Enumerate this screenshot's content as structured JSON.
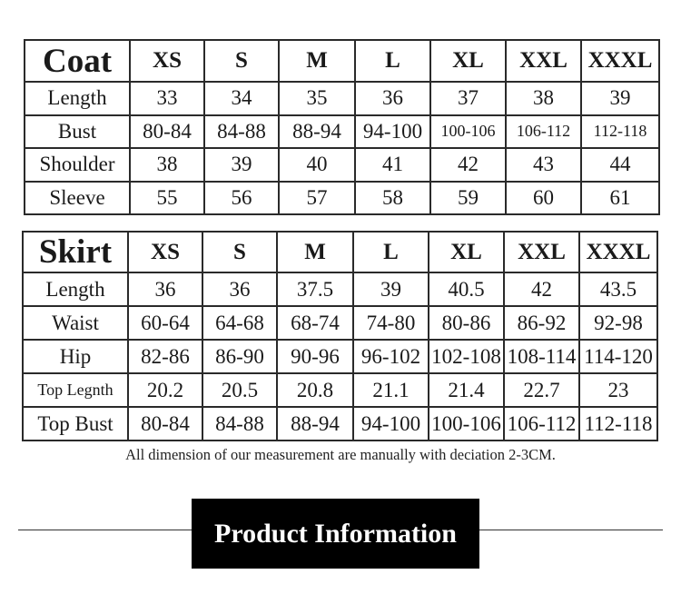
{
  "coat": {
    "title": "Coat",
    "sizes": [
      "XS",
      "S",
      "M",
      "L",
      "XL",
      "XXL",
      "XXXL"
    ],
    "rows": [
      {
        "label": "Length",
        "values": [
          "33",
          "34",
          "35",
          "36",
          "37",
          "38",
          "39"
        ]
      },
      {
        "label": "Bust",
        "values": [
          "80-84",
          "84-88",
          "88-94",
          "94-100",
          "100-106",
          "106-112",
          "112-118"
        ]
      },
      {
        "label": "Shoulder",
        "values": [
          "38",
          "39",
          "40",
          "41",
          "42",
          "43",
          "44"
        ]
      },
      {
        "label": "Sleeve",
        "values": [
          "55",
          "56",
          "57",
          "58",
          "59",
          "60",
          "61"
        ]
      }
    ]
  },
  "skirt": {
    "title": "Skirt",
    "sizes": [
      "XS",
      "S",
      "M",
      "L",
      "XL",
      "XXL",
      "XXXL"
    ],
    "rows": [
      {
        "label": "Length",
        "values": [
          "36",
          "36",
          "37.5",
          "39",
          "40.5",
          "42",
          "43.5"
        ]
      },
      {
        "label": "Waist",
        "values": [
          "60-64",
          "64-68",
          "68-74",
          "74-80",
          "80-86",
          "86-92",
          "92-98"
        ]
      },
      {
        "label": "Hip",
        "values": [
          "82-86",
          "86-90",
          "90-96",
          "96-102",
          "102-108",
          "108-114",
          "114-120"
        ]
      },
      {
        "label": "Top Legnth",
        "values": [
          "20.2",
          "20.5",
          "20.8",
          "21.1",
          "21.4",
          "22.7",
          "23"
        ]
      },
      {
        "label": "Top Bust",
        "values": [
          "80-84",
          "84-88",
          "88-94",
          "94-100",
          "100-106",
          "106-112",
          "112-118"
        ]
      }
    ]
  },
  "note": "All dimension of our measurement are manually with deciation 2-3CM.",
  "banner": "Product Information"
}
